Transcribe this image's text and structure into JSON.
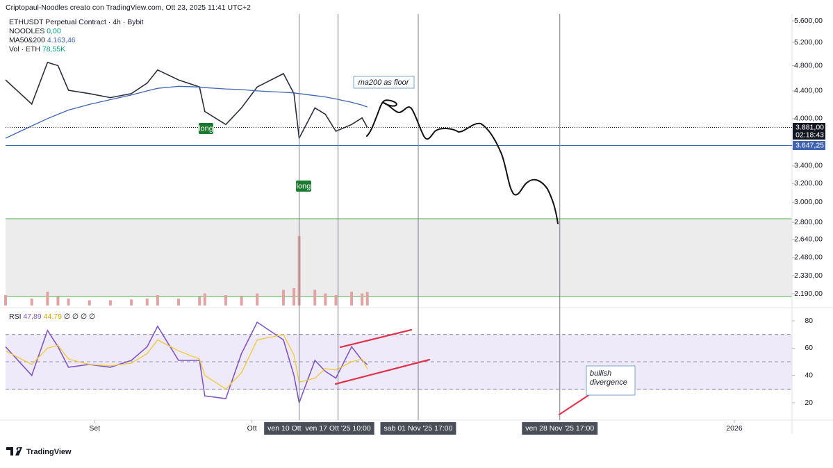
{
  "header": {
    "attribution": "Criptopaul-Noodles creato con TradingView.com, Ott 23, 2025 11:41 UTC+2",
    "symbol": "ETHUSDT Perpetual Contract · 4h · Bybit",
    "noodles": [
      "NOODLES",
      "0,00"
    ],
    "ma": [
      "MA50&200",
      "4.163,46"
    ],
    "vol": [
      "Vol · ETH",
      "78,55K"
    ],
    "rsi": [
      "RSI",
      "47,89",
      "44,79",
      "∅ ∅ ∅ ∅"
    ],
    "brand": "TradingView"
  },
  "chart_data": [
    {
      "type": "line",
      "log": true,
      "x": [
        "2025-08-15",
        "2025-08-20",
        "2025-08-23",
        "2025-08-25",
        "2025-08-27",
        "2025-08-31",
        "2025-09-04",
        "2025-09-08",
        "2025-09-11",
        "2025-09-13",
        "2025-09-17",
        "2025-09-21",
        "2025-09-22",
        "2025-09-26",
        "2025-09-29",
        "2025-10-02",
        "2025-10-07",
        "2025-10-09",
        "2025-10-10",
        "2025-10-13",
        "2025-10-15",
        "2025-10-17",
        "2025-10-20",
        "2025-10-22",
        "2025-10-23"
      ],
      "series": [
        {
          "color": "#2a2e39",
          "values": [
            4570,
            4205,
            4853,
            4800,
            4410,
            4360,
            4300,
            4360,
            4520,
            4730,
            4570,
            4460,
            4100,
            3920,
            4150,
            4460,
            4670,
            4360,
            3740,
            4150,
            4060,
            3830,
            3920,
            4010,
            3881
          ]
        },
        {
          "color": "#3f64b0",
          "values": [
            3740,
            3900,
            4000,
            4060,
            4120,
            4200,
            4270,
            4340,
            4400,
            4440,
            4470,
            4460,
            4450,
            4430,
            4420,
            4400,
            4380,
            4370,
            4360,
            4330,
            4310,
            4280,
            4230,
            4190,
            4163.46
          ]
        }
      ],
      "xlim": [
        "2025-08-15",
        "2026-01-12"
      ],
      "xticks": [
        {
          "value": "2025-09-01",
          "label": "Set"
        },
        {
          "value": "2025-10-01",
          "label": "Ott"
        },
        {
          "value": "2026-01-01",
          "label": "2026"
        }
      ],
      "markers": [
        {
          "value": "2025-10-10",
          "label": "ven 10 Ott"
        },
        {
          "value": "2025-10-17T10:00",
          "label": "ven 17 Ott '25 10:00"
        },
        {
          "value": "2025-11-01T17:00",
          "label": "sab 01 Nov '25 17:00"
        },
        {
          "value": "2025-11-28T17:00",
          "label": "ven 28 Nov '25 17:00"
        }
      ],
      "ylim": [
        2190,
        5600
      ],
      "yticks": [
        {
          "value": 5600,
          "label": "5.600,00"
        },
        {
          "value": 5200,
          "label": "5.200,00"
        },
        {
          "value": 4800,
          "label": "4.800,00"
        },
        {
          "value": 4400,
          "label": "4.400,00"
        },
        {
          "value": 4000,
          "label": "4.000,00"
        },
        {
          "value": 3400,
          "label": "3.400,00"
        },
        {
          "value": 3200,
          "label": "3.200,00"
        },
        {
          "value": 3000,
          "label": "3.000,00"
        },
        {
          "value": 2800,
          "label": "2.800,00"
        },
        {
          "value": 2640,
          "label": "2.640,00"
        },
        {
          "value": 2480,
          "label": "2.480,00"
        },
        {
          "value": 2330,
          "label": "2.330,00"
        },
        {
          "value": 2190,
          "label": "2.190,00"
        }
      ],
      "levels": [
        {
          "value": 3881,
          "label": "3.881,00",
          "countdown": "02:18:43",
          "color": "#131722"
        },
        {
          "value": 3647.25,
          "label": "3.647,25",
          "color": "#3f64b0"
        }
      ],
      "annotations": [
        "ma200 as floor",
        "long",
        "long",
        "bullish divergence"
      ]
    },
    {
      "type": "bar",
      "color": "#e4a3a3",
      "values": [
        60,
        40,
        80,
        50,
        40,
        30,
        30,
        35,
        40,
        60,
        40,
        50,
        70,
        60,
        50,
        70,
        90,
        100,
        400,
        90,
        70,
        60,
        80,
        70,
        78.55
      ],
      "ylim": [
        0,
        420
      ]
    },
    {
      "type": "line",
      "series": [
        {
          "color": "#7e57c2",
          "values": [
            61,
            40,
            73,
            61,
            46,
            48,
            46,
            51,
            61,
            76,
            51,
            51,
            25,
            23,
            56,
            79,
            66,
            40,
            20,
            51,
            43,
            38,
            61,
            51,
            47.89
          ]
        },
        {
          "color": "#f0c93a",
          "values": [
            58,
            48,
            60,
            62,
            52,
            48,
            47,
            49,
            56,
            66,
            58,
            52,
            40,
            30,
            42,
            66,
            70,
            55,
            35,
            38,
            45,
            44,
            50,
            52,
            44.79
          ]
        }
      ],
      "ylim": [
        10,
        90
      ],
      "yticks": [
        20,
        40,
        60,
        80
      ],
      "levels": [
        30,
        50,
        70
      ]
    }
  ]
}
